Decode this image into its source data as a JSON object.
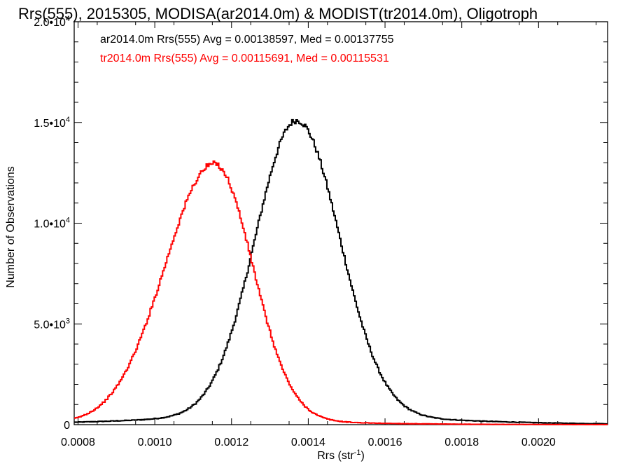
{
  "chart_data": {
    "type": "line",
    "title": "Rrs(555), 2015305, MODISA(ar2014.0m) & MODIST(tr2014.0m), Oligotroph",
    "xlabel": "Rrs (str",
    "xlabel_sup": "-1",
    "xlabel_end": ")",
    "ylabel": "Number of Observations",
    "xlim": [
      0.00079,
      0.00218
    ],
    "ylim": [
      0,
      20000
    ],
    "x_ticks": [
      {
        "value": 0.0008,
        "label": "0.0008"
      },
      {
        "value": 0.001,
        "label": "0.0010"
      },
      {
        "value": 0.0012,
        "label": "0.0012"
      },
      {
        "value": 0.0014,
        "label": "0.0014"
      },
      {
        "value": 0.0016,
        "label": "0.0016"
      },
      {
        "value": 0.0018,
        "label": "0.0018"
      },
      {
        "value": 0.002,
        "label": "0.0020"
      }
    ],
    "y_ticks": [
      {
        "value": 0,
        "mantissa": "0",
        "exp": ""
      },
      {
        "value": 5000,
        "mantissa": "5.0•10",
        "exp": "3"
      },
      {
        "value": 10000,
        "mantissa": "1.0•10",
        "exp": "4"
      },
      {
        "value": 15000,
        "mantissa": "1.5•10",
        "exp": "4"
      },
      {
        "value": 20000,
        "mantissa": "2.0•10",
        "exp": "4"
      }
    ],
    "grid": false,
    "series": [
      {
        "name": "ar2014.0m",
        "color": "#000000",
        "annotation": "ar2014.0m Rrs(555) Avg = 0.00138597, Med = 0.00137755",
        "mu": 0.00137,
        "sigma_left": 0.000108,
        "sigma_right": 0.000112,
        "peak": 15100,
        "tail_amplitude": 1500,
        "tail_decay": 0.00023
      },
      {
        "name": "tr2014.0m",
        "color": "#ff0000",
        "annotation": "tr2014.0m Rrs(555) Avg = 0.00115691, Med = 0.00115531",
        "mu": 0.001155,
        "sigma_left": 0.000128,
        "sigma_right": 0.0001,
        "peak": 12950,
        "tail_amplitude": 800,
        "tail_decay": 0.00018
      }
    ]
  }
}
